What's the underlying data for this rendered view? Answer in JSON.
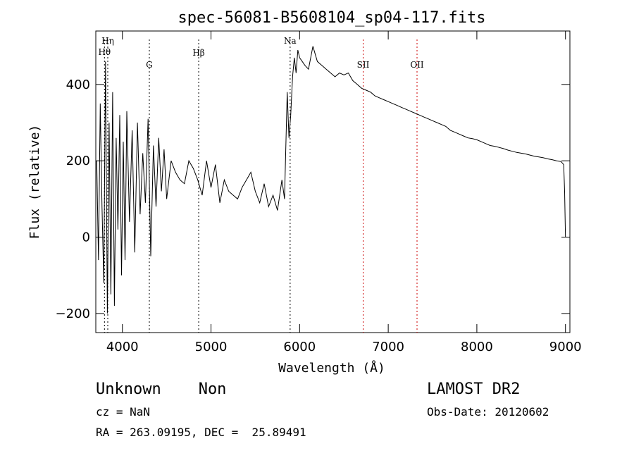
{
  "chart_data": {
    "type": "line",
    "title": "spec-56081-B5608104_sp04-117.fits",
    "xlabel": "Wavelength (Å)",
    "ylabel": "Flux (relative)",
    "xlim": [
      3700,
      9050
    ],
    "ylim": [
      -250,
      540
    ],
    "x_ticks": [
      4000,
      5000,
      6000,
      7000,
      8000,
      9000
    ],
    "y_ticks": [
      -200,
      0,
      200,
      400
    ],
    "grid": false,
    "lines": [
      {
        "label": "Hη",
        "x": 3835,
        "color": "#000000"
      },
      {
        "label": "Hθ",
        "x": 3798,
        "color": "#000000"
      },
      {
        "label": "G",
        "x": 4304,
        "color": "#000000"
      },
      {
        "label": "Hβ",
        "x": 4861,
        "color": "#000000"
      },
      {
        "label": "Na",
        "x": 5893,
        "color": "#000000"
      },
      {
        "label": "SII",
        "x": 6717,
        "color": "#cc0000"
      },
      {
        "label": "OII",
        "x": 7325,
        "color": "#cc0000"
      }
    ],
    "series": [
      {
        "x": [
          3710,
          3730,
          3750,
          3770,
          3790,
          3810,
          3830,
          3850,
          3870,
          3890,
          3910,
          3930,
          3950,
          3970,
          3990,
          4010,
          4030,
          4050,
          4080,
          4110,
          4140,
          4170,
          4200,
          4230,
          4260,
          4290,
          4320,
          4350,
          4380,
          4410,
          4440,
          4470,
          4500,
          4550,
          4600,
          4650,
          4700,
          4750,
          4800,
          4850,
          4900,
          4950,
          5000,
          5050,
          5100,
          5150,
          5200,
          5250,
          5300,
          5350,
          5400,
          5450,
          5500,
          5550,
          5600,
          5650,
          5700,
          5750,
          5800,
          5830,
          5860,
          5880,
          5900,
          5920,
          5940,
          5960,
          5980,
          6000,
          6030,
          6060,
          6100,
          6150,
          6200,
          6250,
          6300,
          6350,
          6400,
          6450,
          6500,
          6550,
          6600,
          6650,
          6700,
          6750,
          6800,
          6850,
          6900,
          6950,
          7000,
          7050,
          7100,
          7150,
          7200,
          7250,
          7300,
          7350,
          7400,
          7450,
          7500,
          7550,
          7600,
          7650,
          7700,
          7750,
          7800,
          7850,
          7900,
          7950,
          8000,
          8050,
          8100,
          8150,
          8200,
          8250,
          8300,
          8350,
          8400,
          8450,
          8500,
          8550,
          8600,
          8650,
          8700,
          8750,
          8800,
          8850,
          8900,
          8950,
          8980,
          8990,
          9000
        ],
        "y": [
          200,
          -60,
          350,
          80,
          -120,
          460,
          -200,
          300,
          -150,
          380,
          -180,
          260,
          20,
          320,
          -100,
          250,
          -60,
          330,
          40,
          280,
          -40,
          300,
          60,
          220,
          90,
          310,
          -50,
          240,
          80,
          260,
          120,
          230,
          100,
          200,
          170,
          150,
          140,
          200,
          180,
          150,
          110,
          200,
          130,
          190,
          90,
          150,
          120,
          110,
          100,
          130,
          150,
          170,
          120,
          90,
          140,
          80,
          110,
          70,
          150,
          100,
          380,
          260,
          320,
          420,
          470,
          430,
          490,
          470,
          460,
          450,
          440,
          500,
          460,
          450,
          440,
          430,
          420,
          430,
          425,
          430,
          410,
          400,
          390,
          385,
          380,
          370,
          365,
          360,
          355,
          350,
          345,
          340,
          335,
          330,
          325,
          320,
          315,
          310,
          305,
          300,
          295,
          290,
          280,
          275,
          270,
          265,
          260,
          258,
          255,
          250,
          245,
          240,
          238,
          235,
          232,
          228,
          225,
          222,
          220,
          218,
          215,
          212,
          210,
          208,
          205,
          203,
          200,
          198,
          190,
          120,
          0
        ]
      }
    ],
    "annotations": {
      "left_line1": "Unknown    Non",
      "left_line2": "cz = NaN",
      "left_line3": "RA = 263.09195, DEC =  25.89491",
      "right_line1": "LAMOST DR2",
      "right_line2": "Obs-Date: 20120602"
    }
  }
}
